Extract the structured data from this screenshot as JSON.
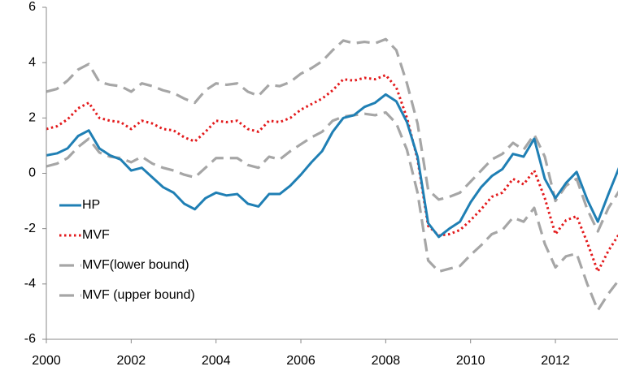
{
  "chart_data": {
    "type": "line",
    "x": [
      2000,
      2000.25,
      2000.5,
      2000.75,
      2001,
      2001.25,
      2001.5,
      2001.75,
      2002,
      2002.25,
      2002.5,
      2002.75,
      2003,
      2003.25,
      2003.5,
      2003.75,
      2004,
      2004.25,
      2004.5,
      2004.75,
      2005,
      2005.25,
      2005.5,
      2005.75,
      2006,
      2006.25,
      2006.5,
      2006.75,
      2007,
      2007.25,
      2007.5,
      2007.75,
      2008,
      2008.25,
      2008.5,
      2008.75,
      2009,
      2009.25,
      2009.5,
      2009.75,
      2010,
      2010.25,
      2010.5,
      2010.75,
      2011,
      2011.25,
      2011.5,
      2011.75,
      2012,
      2012.25,
      2012.5,
      2012.75,
      2013,
      2013.25,
      2013.5
    ],
    "series": [
      {
        "name": "HP",
        "color": "#1f7fb4",
        "dash": "solid",
        "values": [
          0.65,
          0.72,
          0.9,
          1.35,
          1.55,
          0.9,
          0.65,
          0.5,
          0.1,
          0.2,
          -0.15,
          -0.5,
          -0.7,
          -1.1,
          -1.3,
          -0.9,
          -0.7,
          -0.8,
          -0.75,
          -1.1,
          -1.2,
          -0.75,
          -0.75,
          -0.45,
          -0.05,
          0.4,
          0.8,
          1.5,
          2.0,
          2.1,
          2.4,
          2.55,
          2.85,
          2.6,
          1.85,
          0.6,
          -1.8,
          -2.3,
          -2.0,
          -1.75,
          -1.05,
          -0.5,
          -0.1,
          0.15,
          0.7,
          0.6,
          1.25,
          -0.2,
          -0.9,
          -0.35,
          0.05,
          -0.95,
          -1.75,
          -0.75,
          0.2
        ]
      },
      {
        "name": "MVF",
        "color": "#e31a1c",
        "dash": "dotted",
        "values": [
          1.6,
          1.7,
          1.95,
          2.35,
          2.55,
          2.0,
          1.9,
          1.85,
          1.6,
          1.9,
          1.8,
          1.6,
          1.55,
          1.3,
          1.15,
          1.5,
          1.9,
          1.85,
          1.9,
          1.6,
          1.5,
          1.9,
          1.85,
          2.0,
          2.3,
          2.5,
          2.7,
          3.0,
          3.4,
          3.35,
          3.45,
          3.4,
          3.55,
          3.1,
          2.0,
          0.5,
          -1.9,
          -2.25,
          -2.2,
          -2.05,
          -1.7,
          -1.3,
          -0.85,
          -0.7,
          -0.2,
          -0.4,
          0.1,
          -0.9,
          -2.2,
          -1.7,
          -1.55,
          -2.5,
          -3.55,
          -2.8,
          -2.2
        ]
      },
      {
        "name": "MVF(lower bound)",
        "color": "#a6a6a6",
        "dash": "dashed",
        "values": [
          0.25,
          0.35,
          0.55,
          0.95,
          1.25,
          0.75,
          0.6,
          0.55,
          0.4,
          0.6,
          0.35,
          0.2,
          0.1,
          -0.05,
          -0.15,
          0.2,
          0.55,
          0.55,
          0.55,
          0.3,
          0.2,
          0.6,
          0.5,
          0.8,
          1.05,
          1.3,
          1.5,
          1.9,
          2.05,
          2.1,
          2.15,
          2.1,
          2.2,
          1.8,
          0.85,
          -0.7,
          -3.15,
          -3.55,
          -3.45,
          -3.35,
          -2.95,
          -2.6,
          -2.2,
          -2.05,
          -1.6,
          -1.75,
          -1.25,
          -2.55,
          -3.4,
          -3.0,
          -2.9,
          -4.0,
          -4.95,
          -4.35,
          -3.85
        ]
      },
      {
        "name": "MVF (upper bound)",
        "color": "#a6a6a6",
        "dash": "dashed",
        "values": [
          2.95,
          3.05,
          3.35,
          3.75,
          3.95,
          3.3,
          3.2,
          3.15,
          2.95,
          3.25,
          3.15,
          3.0,
          2.9,
          2.7,
          2.55,
          3.0,
          3.25,
          3.2,
          3.25,
          2.95,
          2.8,
          3.2,
          3.15,
          3.3,
          3.6,
          3.8,
          4.05,
          4.45,
          4.8,
          4.7,
          4.75,
          4.7,
          4.85,
          4.45,
          3.25,
          1.8,
          -0.6,
          -0.95,
          -0.85,
          -0.7,
          -0.3,
          0.1,
          0.5,
          0.7,
          1.1,
          0.85,
          1.4,
          0.6,
          -1.0,
          -0.45,
          -0.2,
          -1.3,
          -2.1,
          -1.25,
          -0.65
        ]
      }
    ],
    "xlim": [
      2000,
      2013.5
    ],
    "ylim": [
      -6,
      6
    ],
    "xticks": [
      2000,
      2002,
      2004,
      2006,
      2008,
      2010,
      2012
    ],
    "yticks": [
      -6,
      -4,
      -2,
      0,
      2,
      4,
      6
    ],
    "grid": false,
    "legend": "lower-left"
  }
}
